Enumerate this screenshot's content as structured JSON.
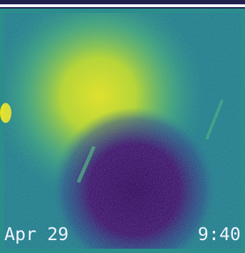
{
  "overlay": {
    "date": "Apr 29",
    "time": "9:40"
  }
}
